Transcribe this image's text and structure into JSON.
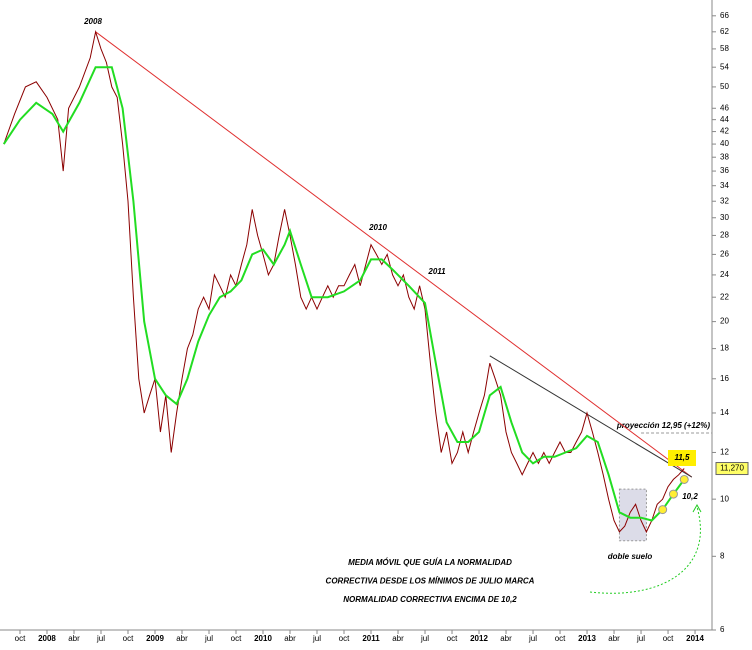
{
  "chart_data": {
    "type": "line",
    "log_scale": true,
    "xlim": [
      2007.565,
      2014.157
    ],
    "ylim": [
      6,
      70.2
    ],
    "yticks": [
      6,
      8,
      10,
      12,
      14,
      16,
      18,
      20,
      22,
      24,
      26,
      28,
      30,
      32,
      34,
      36,
      38,
      40,
      42,
      44,
      46,
      50,
      54,
      58,
      62,
      66
    ],
    "xticks": [
      {
        "value": 2007.75,
        "label": "oct"
      },
      2008,
      {
        "value": 2008.25,
        "label": "abr"
      },
      {
        "value": 2008.5,
        "label": "jul"
      },
      {
        "value": 2008.75,
        "label": "oct"
      },
      2009,
      {
        "value": 2009.25,
        "label": "abr"
      },
      {
        "value": 2009.5,
        "label": "jul"
      },
      {
        "value": 2009.75,
        "label": "oct"
      },
      2010,
      {
        "value": 2010.25,
        "label": "abr"
      },
      {
        "value": 2010.5,
        "label": "jul"
      },
      {
        "value": 2010.75,
        "label": "oct"
      },
      2011,
      {
        "value": 2011.25,
        "label": "abr"
      },
      {
        "value": 2011.5,
        "label": "jul"
      },
      {
        "value": 2011.75,
        "label": "oct"
      },
      2012,
      {
        "value": 2012.25,
        "label": "abr"
      },
      {
        "value": 2012.5,
        "label": "jul"
      },
      {
        "value": 2012.75,
        "label": "oct"
      },
      2013,
      {
        "value": 2013.25,
        "label": "abr"
      },
      {
        "value": 2013.5,
        "label": "jul"
      },
      {
        "value": 2013.75,
        "label": "oct"
      },
      2014
    ],
    "series": [
      {
        "color": "#8b0000",
        "x": [
          2007.6,
          2007.7,
          2007.8,
          2007.9,
          2008.0,
          2008.1,
          2008.15,
          2008.2,
          2008.3,
          2008.4,
          2008.45,
          2008.5,
          2008.55,
          2008.6,
          2008.65,
          2008.7,
          2008.75,
          2008.8,
          2008.85,
          2008.9,
          2008.95,
          2009.0,
          2009.05,
          2009.1,
          2009.15,
          2009.2,
          2009.25,
          2009.3,
          2009.35,
          2009.4,
          2009.45,
          2009.5,
          2009.55,
          2009.6,
          2009.65,
          2009.7,
          2009.75,
          2009.8,
          2009.85,
          2009.9,
          2009.95,
          2010.0,
          2010.05,
          2010.1,
          2010.15,
          2010.2,
          2010.25,
          2010.3,
          2010.35,
          2010.4,
          2010.45,
          2010.5,
          2010.55,
          2010.6,
          2010.65,
          2010.7,
          2010.75,
          2010.8,
          2010.85,
          2010.9,
          2011.0,
          2011.05,
          2011.1,
          2011.15,
          2011.2,
          2011.25,
          2011.3,
          2011.35,
          2011.4,
          2011.45,
          2011.5,
          2011.55,
          2011.6,
          2011.65,
          2011.7,
          2011.75,
          2011.8,
          2011.85,
          2011.9,
          2011.95,
          2012.0,
          2012.05,
          2012.1,
          2012.15,
          2012.2,
          2012.25,
          2012.3,
          2012.35,
          2012.4,
          2012.45,
          2012.5,
          2012.55,
          2012.6,
          2012.65,
          2012.7,
          2012.75,
          2012.8,
          2012.85,
          2012.9,
          2012.95,
          2013.0,
          2013.05,
          2013.1,
          2013.15,
          2013.2,
          2013.25,
          2013.3,
          2013.35,
          2013.4,
          2013.45,
          2013.5,
          2013.55,
          2013.6,
          2013.65,
          2013.7,
          2013.75,
          2013.8,
          2013.85,
          2013.9
        ],
        "values": [
          40,
          45,
          50,
          51,
          48,
          44,
          36,
          46,
          50,
          56,
          62,
          58,
          55,
          50,
          48,
          40,
          32,
          22,
          16,
          14,
          15,
          16,
          13,
          15,
          12,
          14,
          16,
          18,
          19,
          21,
          22,
          21,
          24,
          23,
          22,
          24,
          23,
          25,
          27,
          31,
          28,
          26,
          24,
          25,
          28,
          31,
          28,
          25,
          22,
          21,
          22,
          21,
          22,
          23,
          22,
          23,
          23,
          24,
          25,
          23,
          27,
          26,
          25,
          26,
          24,
          23,
          24,
          22,
          21,
          23,
          21,
          17,
          14,
          12,
          13,
          11.5,
          12,
          13,
          12,
          13,
          14,
          15,
          17,
          16,
          15,
          13,
          12,
          11.5,
          11,
          11.5,
          12,
          11.5,
          12,
          11.5,
          12,
          12.5,
          12,
          12,
          12.5,
          13,
          14,
          13,
          12,
          11,
          10,
          9.2,
          8.8,
          9,
          9.5,
          9.8,
          9.2,
          8.8,
          9.2,
          9.8,
          10,
          10.5,
          10.8,
          11,
          11.27
        ]
      },
      {
        "color": "#22dd22",
        "x": [
          2007.6,
          2007.75,
          2007.9,
          2008.05,
          2008.15,
          2008.3,
          2008.45,
          2008.6,
          2008.7,
          2008.8,
          2008.9,
          2009.0,
          2009.1,
          2009.2,
          2009.3,
          2009.4,
          2009.5,
          2009.6,
          2009.7,
          2009.8,
          2009.9,
          2010.0,
          2010.1,
          2010.2,
          2010.25,
          2010.35,
          2010.45,
          2010.6,
          2010.75,
          2010.9,
          2011.0,
          2011.1,
          2011.2,
          2011.35,
          2011.5,
          2011.6,
          2011.7,
          2011.8,
          2011.9,
          2012.0,
          2012.1,
          2012.2,
          2012.3,
          2012.4,
          2012.5,
          2012.6,
          2012.7,
          2012.8,
          2012.9,
          2013.0,
          2013.1,
          2013.2,
          2013.3,
          2013.4,
          2013.5,
          2013.6,
          2013.7,
          2013.8,
          2013.9
        ],
        "values": [
          40,
          44,
          47,
          45,
          42,
          47,
          54,
          54,
          46,
          32,
          20,
          16,
          15,
          14.5,
          16,
          18.5,
          20.5,
          22,
          22.5,
          23.5,
          26,
          26.5,
          25,
          27,
          28.5,
          25,
          22,
          22,
          22.5,
          23.5,
          25.5,
          25.5,
          24.5,
          23,
          21.5,
          17,
          13.5,
          12.5,
          12.5,
          13,
          15,
          15.5,
          13.5,
          12,
          11.5,
          11.8,
          11.8,
          12,
          12.2,
          12.8,
          12.5,
          11,
          9.5,
          9.3,
          9.3,
          9.2,
          9.6,
          10.2,
          10.8
        ]
      }
    ],
    "trendlines": [
      {
        "color": "#e03030",
        "x": [
          2008.45,
          2013.97
        ],
        "values": [
          62,
          10.9
        ]
      },
      {
        "color": "#333333",
        "x": [
          2012.1,
          2013.97
        ],
        "values": [
          17.5,
          10.9
        ]
      }
    ],
    "projection": {
      "label": "proyección 12,95 (+12%)",
      "value": 12.95
    },
    "last_price": {
      "value": 11.27,
      "label": "11,270"
    },
    "annotations": [
      "2008",
      "2010",
      "2011",
      "11,5",
      "10,2",
      "doble suelo"
    ],
    "note_lines": [
      "MEDIA MÓVIL QUE GUÍA LA NORMALIDAD",
      "CORRECTIVA DESDE LOS MÍNIMOS DE JULIO MARCA",
      "NORMALIDAD CORRECTIVA ENCIMA DE 10,2"
    ]
  }
}
